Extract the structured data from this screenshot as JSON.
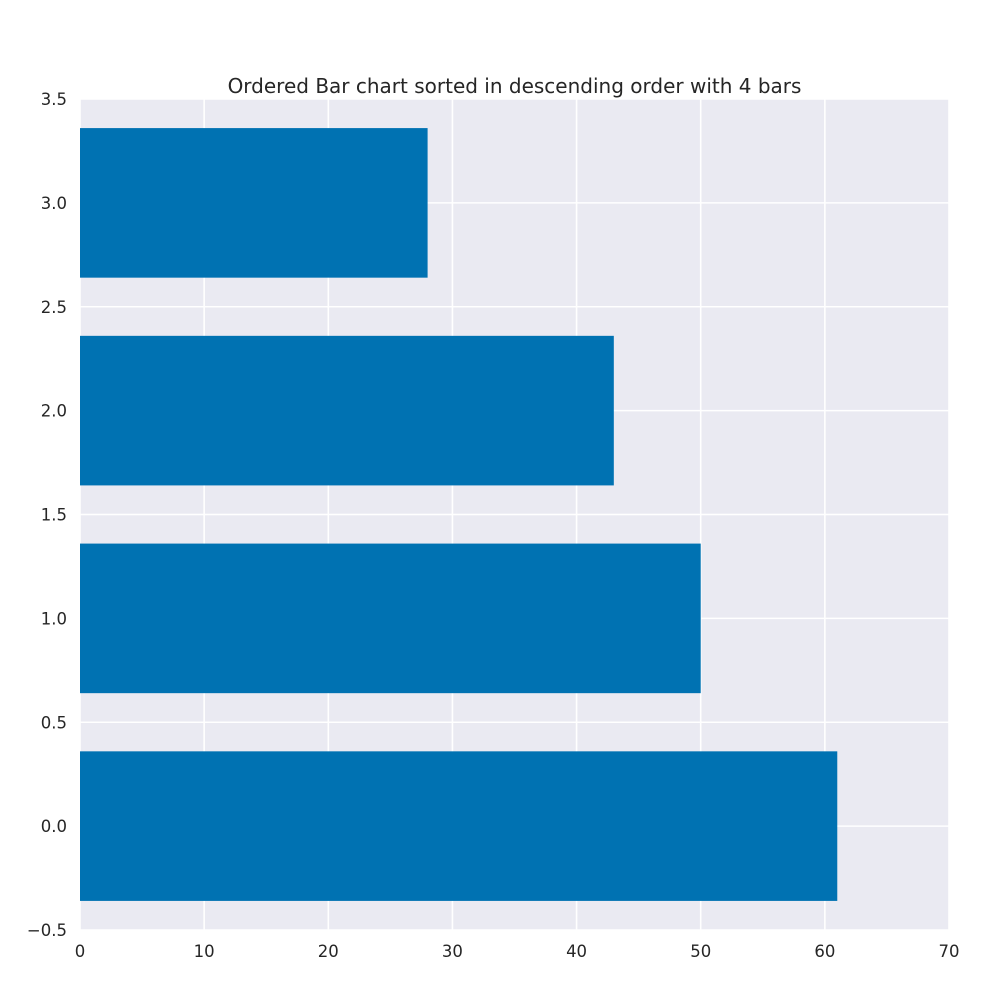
{
  "chart_data": {
    "type": "bar",
    "orientation": "horizontal",
    "title": "Ordered Bar chart sorted in descending order with 4 bars",
    "xlabel": "",
    "ylabel": "",
    "categories": [
      0,
      1,
      2,
      3
    ],
    "values": [
      61,
      50,
      43,
      28
    ],
    "bar_height": 0.72,
    "xlim": [
      0,
      70
    ],
    "ylim": [
      -0.5,
      3.5
    ],
    "x_ticks": [
      "0",
      "10",
      "20",
      "30",
      "40",
      "50",
      "60",
      "70"
    ],
    "y_ticks": [
      "−0.5",
      "0.0",
      "0.5",
      "1.0",
      "1.5",
      "2.0",
      "2.5",
      "3.0",
      "3.5"
    ],
    "grid": true,
    "legend": "none",
    "colors": {
      "bar": "#0072b2",
      "background": "#eaeaf2",
      "grid": "#ffffff",
      "text": "#262626"
    }
  }
}
